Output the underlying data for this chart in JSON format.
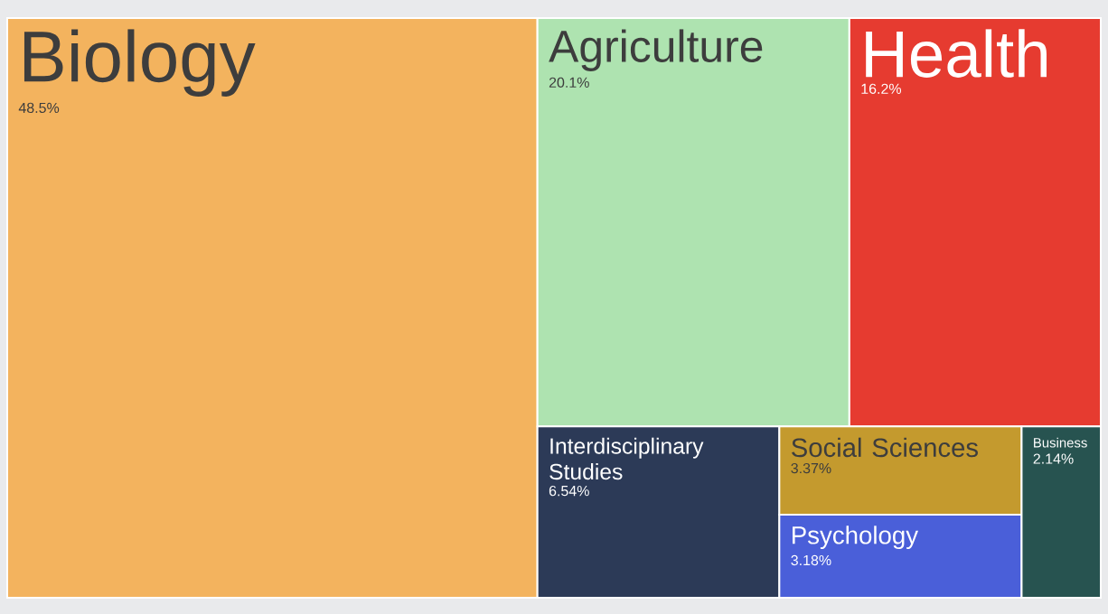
{
  "chart_data": {
    "type": "other",
    "categories": [
      "Biology",
      "Agriculture",
      "Health",
      "Interdisciplinary Studies",
      "Social Sciences",
      "Psychology",
      "Business"
    ],
    "values": [
      48.5,
      20.1,
      16.2,
      6.54,
      3.37,
      3.18,
      2.14
    ],
    "value_labels": [
      "48.5%",
      "20.1%",
      "16.2%",
      "6.54%",
      "3.37%",
      "3.18%",
      "2.14%"
    ],
    "colors": [
      "#f3b35e",
      "#aee3b0",
      "#e63b30",
      "#2c3a57",
      "#c49a2e",
      "#4a5fd9",
      "#275350"
    ]
  }
}
